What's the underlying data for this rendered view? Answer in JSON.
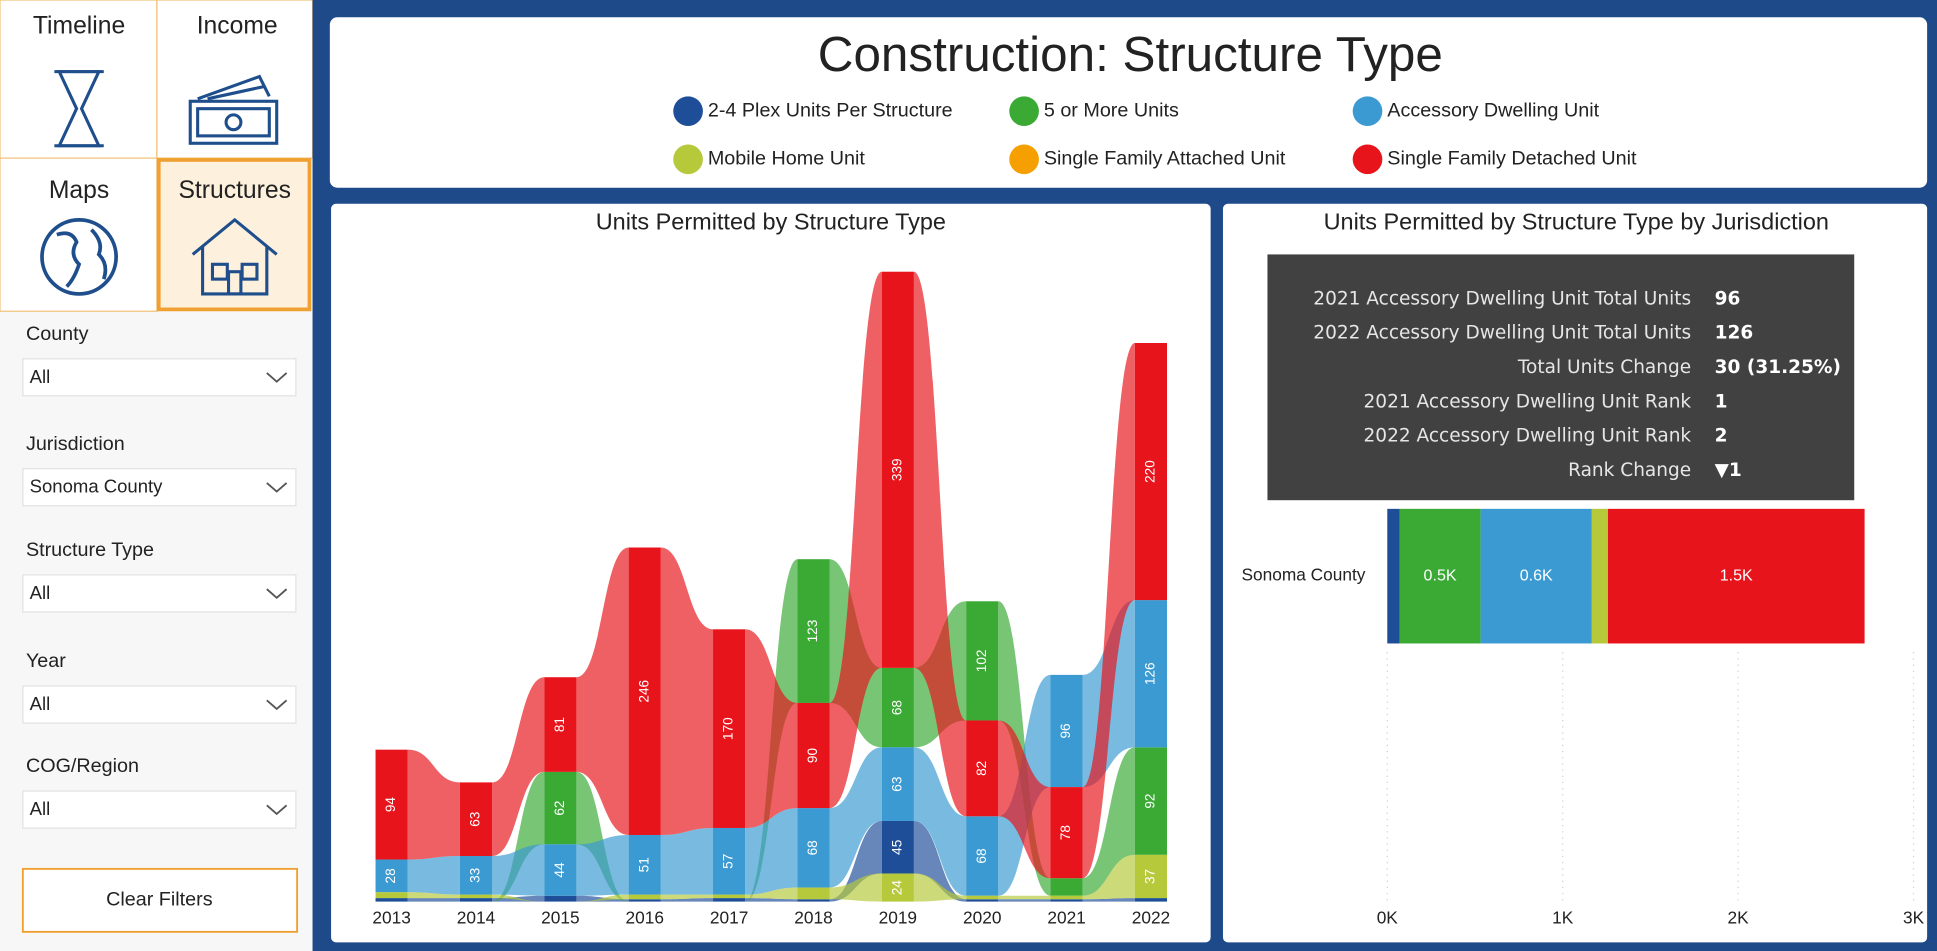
{
  "nav": [
    "Timeline",
    "Income",
    "Maps",
    "Structures"
  ],
  "filters": [
    {
      "label": "County",
      "value": "All"
    },
    {
      "label": "Jurisdiction",
      "value": "Sonoma County"
    },
    {
      "label": "Structure Type",
      "value": "All"
    },
    {
      "label": "Year",
      "value": "All"
    },
    {
      "label": "COG/Region",
      "value": "All"
    }
  ],
  "clear_button": "Clear Filters",
  "header": {
    "title": "Construction: Structure Type"
  },
  "chart_data": [
    {
      "type": "ribbon",
      "title": "Units Permitted by Structure Type",
      "categories": [
        "2013",
        "2014",
        "2015",
        "2016",
        "2017",
        "2018",
        "2019",
        "2020",
        "2021",
        "2022"
      ],
      "series": [
        {
          "name": "2-4 Plex Units Per Structure",
          "color": "#1f4e99",
          "values": [
            3,
            3,
            5,
            2,
            3,
            2,
            45,
            2,
            2,
            3
          ]
        },
        {
          "name": "5 or More Units",
          "color": "#3aaa35",
          "values": [
            0,
            0,
            62,
            0,
            0,
            123,
            68,
            102,
            15,
            92
          ]
        },
        {
          "name": "Accessory Dwelling Unit",
          "color": "#3a9ad1",
          "values": [
            28,
            33,
            44,
            51,
            57,
            68,
            63,
            68,
            96,
            126
          ]
        },
        {
          "name": "Mobile Home Unit",
          "color": "#b5c93a",
          "values": [
            5,
            3,
            0,
            4,
            3,
            10,
            24,
            3,
            3,
            37
          ]
        },
        {
          "name": "Single Family Attached Unit",
          "color": "#f5a000",
          "values": [
            0,
            0,
            0,
            0,
            0,
            0,
            0,
            0,
            0,
            0
          ]
        },
        {
          "name": "Single Family Detached Unit",
          "color": "#e8141c",
          "values": [
            94,
            63,
            81,
            246,
            170,
            90,
            339,
            82,
            78,
            220
          ]
        }
      ]
    },
    {
      "type": "hbar",
      "title": "Units Permitted by Structure Type by Jurisdiction",
      "categories": [
        "Sonoma County"
      ],
      "series": [
        {
          "name": "2-4 Plex Units Per Structure",
          "color": "#1f4e99",
          "values": [
            70
          ]
        },
        {
          "name": "5 or More Units",
          "color": "#3aaa35",
          "values": [
            462
          ],
          "value_labels": [
            "0.5K"
          ]
        },
        {
          "name": "Accessory Dwelling Unit",
          "color": "#3a9ad1",
          "values": [
            634
          ],
          "value_labels": [
            "0.6K"
          ]
        },
        {
          "name": "Mobile Home Unit",
          "color": "#b5c93a",
          "values": [
            92
          ]
        },
        {
          "name": "Single Family Attached Unit",
          "color": "#f5a000",
          "values": [
            0
          ]
        },
        {
          "name": "Single Family Detached Unit",
          "color": "#e8141c",
          "values": [
            1463
          ],
          "value_labels": [
            "1.5K"
          ]
        }
      ],
      "xlim": [
        0,
        3000
      ],
      "xticks": [
        {
          "value": 0,
          "label": "0K"
        },
        {
          "value": 1000,
          "label": "1K"
        },
        {
          "value": 2000,
          "label": "2K"
        },
        {
          "value": 3000,
          "label": "3K"
        }
      ],
      "grid": true
    }
  ],
  "tooltip": {
    "rows": [
      {
        "label": "2021 Accessory Dwelling Unit Total Units",
        "value": 96
      },
      {
        "label": "2022 Accessory Dwelling Unit Total Units",
        "value": 126
      },
      {
        "label": "Total Units Change",
        "value": "30 (31.25%)"
      },
      {
        "label": "2021 Accessory Dwelling Unit Rank",
        "value": 1
      },
      {
        "label": "2022 Accessory Dwelling Unit Rank",
        "value": 2
      },
      {
        "label": "Rank Change",
        "value": "▼1"
      }
    ]
  }
}
